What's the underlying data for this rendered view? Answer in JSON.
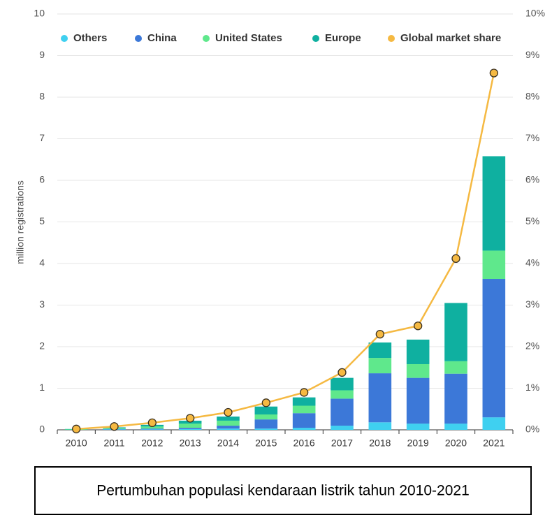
{
  "chart_data": {
    "type": "bar",
    "stacked": true,
    "caption": "Pertumbuhan populasi kendaraan listrik tahun 2010-2021",
    "y_label": "million registrations",
    "categories": [
      "2010",
      "2011",
      "2012",
      "2013",
      "2014",
      "2015",
      "2016",
      "2017",
      "2018",
      "2019",
      "2020",
      "2021"
    ],
    "series": [
      {
        "name": "Others",
        "color": "#3fd0f0",
        "values": [
          0,
          0.01,
          0.01,
          0.02,
          0.03,
          0.03,
          0.05,
          0.1,
          0.18,
          0.15,
          0.15,
          0.3
        ]
      },
      {
        "name": "China",
        "color": "#3c78d8",
        "values": [
          0,
          0.01,
          0.02,
          0.03,
          0.07,
          0.22,
          0.35,
          0.65,
          1.18,
          1.1,
          1.2,
          3.33
        ]
      },
      {
        "name": "United States",
        "color": "#5fe88c",
        "values": [
          0.01,
          0.02,
          0.05,
          0.1,
          0.12,
          0.12,
          0.18,
          0.2,
          0.37,
          0.33,
          0.3,
          0.68
        ]
      },
      {
        "name": "Europe",
        "color": "#0fb0a0",
        "values": [
          0.01,
          0.02,
          0.04,
          0.07,
          0.1,
          0.19,
          0.2,
          0.3,
          0.37,
          0.59,
          1.4,
          2.27
        ]
      },
      {
        "name": "Global market share",
        "color": "#f5b942",
        "type": "line",
        "axis": "y2",
        "values": [
          0.02,
          0.08,
          0.17,
          0.28,
          0.42,
          0.65,
          0.9,
          1.38,
          2.3,
          2.5,
          4.12,
          8.58
        ]
      }
    ],
    "ylim": [
      0,
      10
    ],
    "yticks": [
      0,
      1,
      2,
      3,
      4,
      5,
      6,
      7,
      8,
      9,
      10
    ],
    "y2lim": [
      0,
      10
    ],
    "y2ticks": [
      {
        "value": 0,
        "label": "0%"
      },
      {
        "value": 1,
        "label": "1%"
      },
      {
        "value": 2,
        "label": "2%"
      },
      {
        "value": 3,
        "label": "3%"
      },
      {
        "value": 4,
        "label": "4%"
      },
      {
        "value": 5,
        "label": "5%"
      },
      {
        "value": 6,
        "label": "6%"
      },
      {
        "value": 7,
        "label": "7%"
      },
      {
        "value": 8,
        "label": "8%"
      },
      {
        "value": 9,
        "label": "9%"
      },
      {
        "value": 10,
        "label": "10%"
      }
    ],
    "grid": true
  }
}
